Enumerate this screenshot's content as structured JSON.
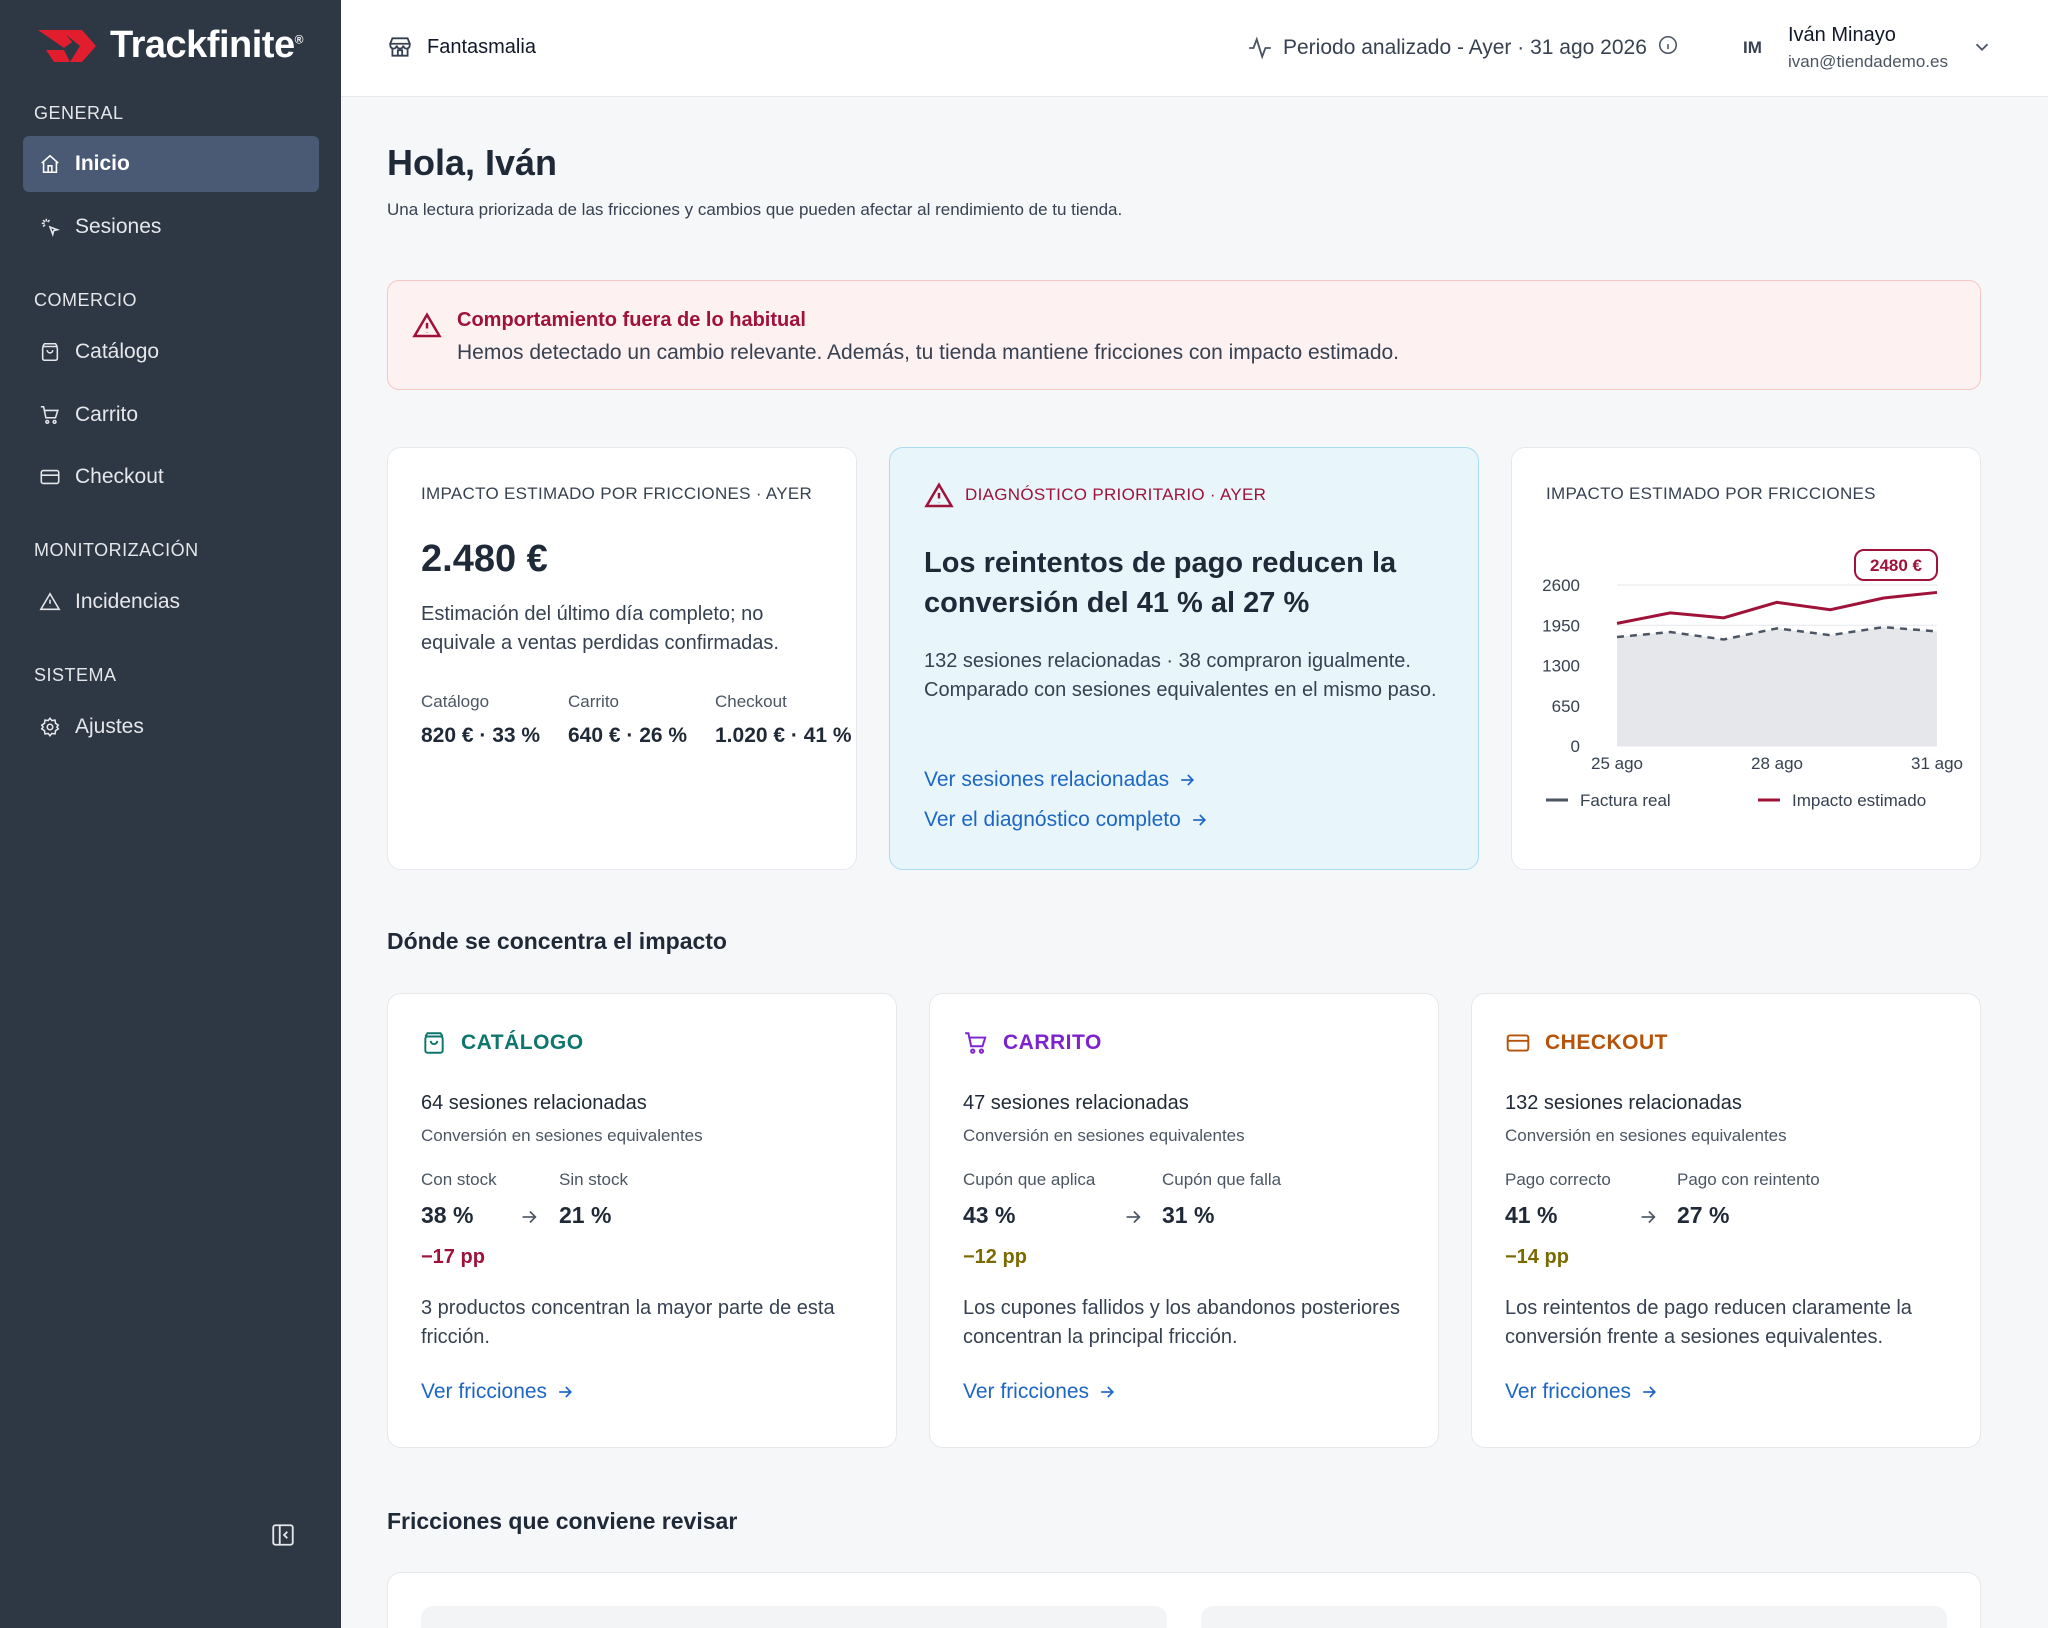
{
  "brand": {
    "name": "Trackfinite",
    "reg": "®",
    "accent": "#e11d2e"
  },
  "sidebar": {
    "sections": [
      {
        "title": "GENERAL"
      },
      {
        "title": "COMERCIO"
      },
      {
        "title": "MONITORIZACIÓN"
      },
      {
        "title": "SISTEMA"
      }
    ],
    "items": [
      {
        "label": "Inicio",
        "icon": "home-icon",
        "active": true
      },
      {
        "label": "Sesiones",
        "icon": "sparkle-cursor-icon"
      },
      {
        "label": "Catálogo",
        "icon": "bag-icon"
      },
      {
        "label": "Carrito",
        "icon": "cart-icon"
      },
      {
        "label": "Checkout",
        "icon": "card-icon"
      },
      {
        "label": "Incidencias",
        "icon": "warning-icon"
      },
      {
        "label": "Ajustes",
        "icon": "gear-icon"
      }
    ]
  },
  "topbar": {
    "store": "Fantasmalia",
    "period": "Periodo analizado - Ayer · 31 ago 2026",
    "user": {
      "initials": "IM",
      "name": "Iván Minayo",
      "email": "ivan@tiendademo.es"
    }
  },
  "main": {
    "greeting": "Hola, Iván",
    "subtitle": "Una lectura priorizada de las fricciones y cambios que pueden afectar al rendimiento de tu tienda.",
    "alert": {
      "title": "Comportamiento fuera de lo habitual",
      "text": "Hemos detectado un cambio relevante. Además, tu tienda mantiene fricciones con impacto estimado."
    },
    "impact_card": {
      "label": "IMPACTO ESTIMADO POR FRICCIONES · AYER",
      "amount": "2.480 €",
      "desc": "Estimación del último día completo; no equivale a ventas perdidas confirmadas.",
      "breakdown": [
        {
          "label": "Catálogo",
          "value": "820 € · 33 %"
        },
        {
          "label": "Carrito",
          "value": "640 € · 26 %"
        },
        {
          "label": "Checkout",
          "value": "1.020 € · 41 %"
        }
      ]
    },
    "diagnosis": {
      "label": "DIAGNÓSTICO PRIORITARIO · AYER",
      "headline": "Los reintentos de pago reducen la conversión del 41 % al 27 %",
      "desc": "132 sesiones relacionadas · 38 compraron igualmente. Comparado con sesiones equivalentes en el mismo paso.",
      "link1": "Ver sesiones relacionadas",
      "link2": "Ver el diagnóstico completo"
    },
    "chart_card": {
      "label": "IMPACTO ESTIMADO POR FRICCIONES"
    },
    "section_impact": "Dónde se concentra el impacto",
    "impact_areas": [
      {
        "title": "CATÁLOGO",
        "color": "#0f766e",
        "sessions": "64 sesiones relacionadas",
        "conv": "Conversión en sesiones equivalentes",
        "a_label": "Con stock",
        "a_val": "38 %",
        "b_label": "Sin stock",
        "b_val": "21 %",
        "delta": "−17 pp",
        "delta_color": "#9f1239",
        "text": "3 productos concentran la mayor parte de esta fricción.",
        "link": "Ver fricciones"
      },
      {
        "title": "CARRITO",
        "color": "#7e22ce",
        "sessions": "47 sesiones relacionadas",
        "conv": "Conversión en sesiones equivalentes",
        "a_label": "Cupón que aplica",
        "a_val": "43 %",
        "b_label": "Cupón que falla",
        "b_val": "31 %",
        "delta": "−12 pp",
        "delta_color": "#7a6a00",
        "text": "Los cupones fallidos y los abandonos posteriores concentran la principal fricción.",
        "link": "Ver fricciones"
      },
      {
        "title": "CHECKOUT",
        "color": "#b45309",
        "sessions": "132 sesiones relacionadas",
        "conv": "Conversión en sesiones equivalentes",
        "a_label": "Pago correcto",
        "a_val": "41 %",
        "b_label": "Pago con reintento",
        "b_val": "27 %",
        "delta": "−14 pp",
        "delta_color": "#7a6a00",
        "text": "Los reintentos de pago reducen claramente la conversión frente a sesiones equivalentes.",
        "link": "Ver fricciones"
      }
    ],
    "section_frictions": "Fricciones que conviene revisar"
  },
  "chart_data": {
    "type": "line",
    "x": [
      "25 ago",
      "26 ago",
      "27 ago",
      "28 ago",
      "29 ago",
      "30 ago",
      "31 ago"
    ],
    "x_ticks": [
      "25 ago",
      "28 ago",
      "31 ago"
    ],
    "yticks": [
      0,
      650,
      1300,
      1950,
      2600
    ],
    "ylim": [
      0,
      2600
    ],
    "series": [
      {
        "name": "Factura real",
        "values": [
          1760,
          1840,
          1720,
          1900,
          1790,
          1920,
          1850
        ],
        "color": "#4b5563",
        "style": "dashed-area"
      },
      {
        "name": "Impacto estimado",
        "values": [
          1980,
          2150,
          2070,
          2320,
          2200,
          2390,
          2480
        ],
        "color": "#9f1239",
        "style": "line"
      }
    ],
    "annotation": "2480 €",
    "grid": true,
    "legend": "bottom"
  }
}
